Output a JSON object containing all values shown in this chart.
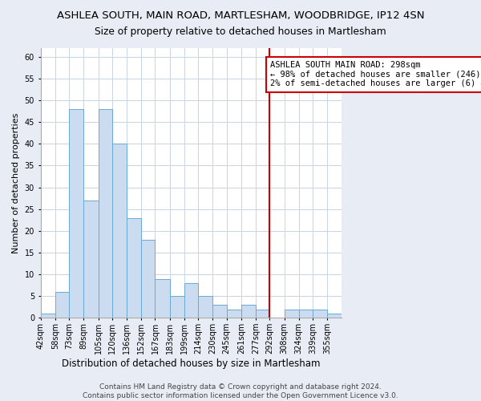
{
  "title": "ASHLEA SOUTH, MAIN ROAD, MARTLESHAM, WOODBRIDGE, IP12 4SN",
  "subtitle": "Size of property relative to detached houses in Martlesham",
  "xlabel": "Distribution of detached houses by size in Martlesham",
  "ylabel": "Number of detached properties",
  "bin_labels": [
    "42sqm",
    "58sqm",
    "73sqm",
    "89sqm",
    "105sqm",
    "120sqm",
    "136sqm",
    "152sqm",
    "167sqm",
    "183sqm",
    "199sqm",
    "214sqm",
    "230sqm",
    "245sqm",
    "261sqm",
    "277sqm",
    "292sqm",
    "308sqm",
    "324sqm",
    "339sqm",
    "355sqm"
  ],
  "bin_edges": [
    42,
    58,
    73,
    89,
    105,
    120,
    136,
    152,
    167,
    183,
    199,
    214,
    230,
    245,
    261,
    277,
    292,
    308,
    324,
    339,
    355,
    371
  ],
  "bar_heights": [
    1,
    6,
    48,
    27,
    48,
    40,
    23,
    18,
    9,
    5,
    8,
    5,
    3,
    2,
    3,
    2,
    0,
    2,
    2,
    2,
    1
  ],
  "bar_color": "#ccdcf0",
  "bar_edge_color": "#6aaad4",
  "grid_color": "#c8d4e4",
  "plot_bg_color": "#ffffff",
  "fig_bg_color": "#e8edf5",
  "vline_x": 292,
  "vline_color": "#cc0000",
  "annotation_text": "ASHLEA SOUTH MAIN ROAD: 298sqm\n← 98% of detached houses are smaller (246)\n2% of semi-detached houses are larger (6) →",
  "annotation_box_color": "#ffffff",
  "annotation_box_edge_color": "#cc0000",
  "ylim": [
    0,
    62
  ],
  "ytick_max": 60,
  "footer": "Contains HM Land Registry data © Crown copyright and database right 2024.\nContains public sector information licensed under the Open Government Licence v3.0.",
  "title_fontsize": 9.5,
  "subtitle_fontsize": 8.8,
  "xlabel_fontsize": 8.5,
  "ylabel_fontsize": 8,
  "tick_fontsize": 7,
  "annotation_fontsize": 7.5,
  "footer_fontsize": 6.5
}
